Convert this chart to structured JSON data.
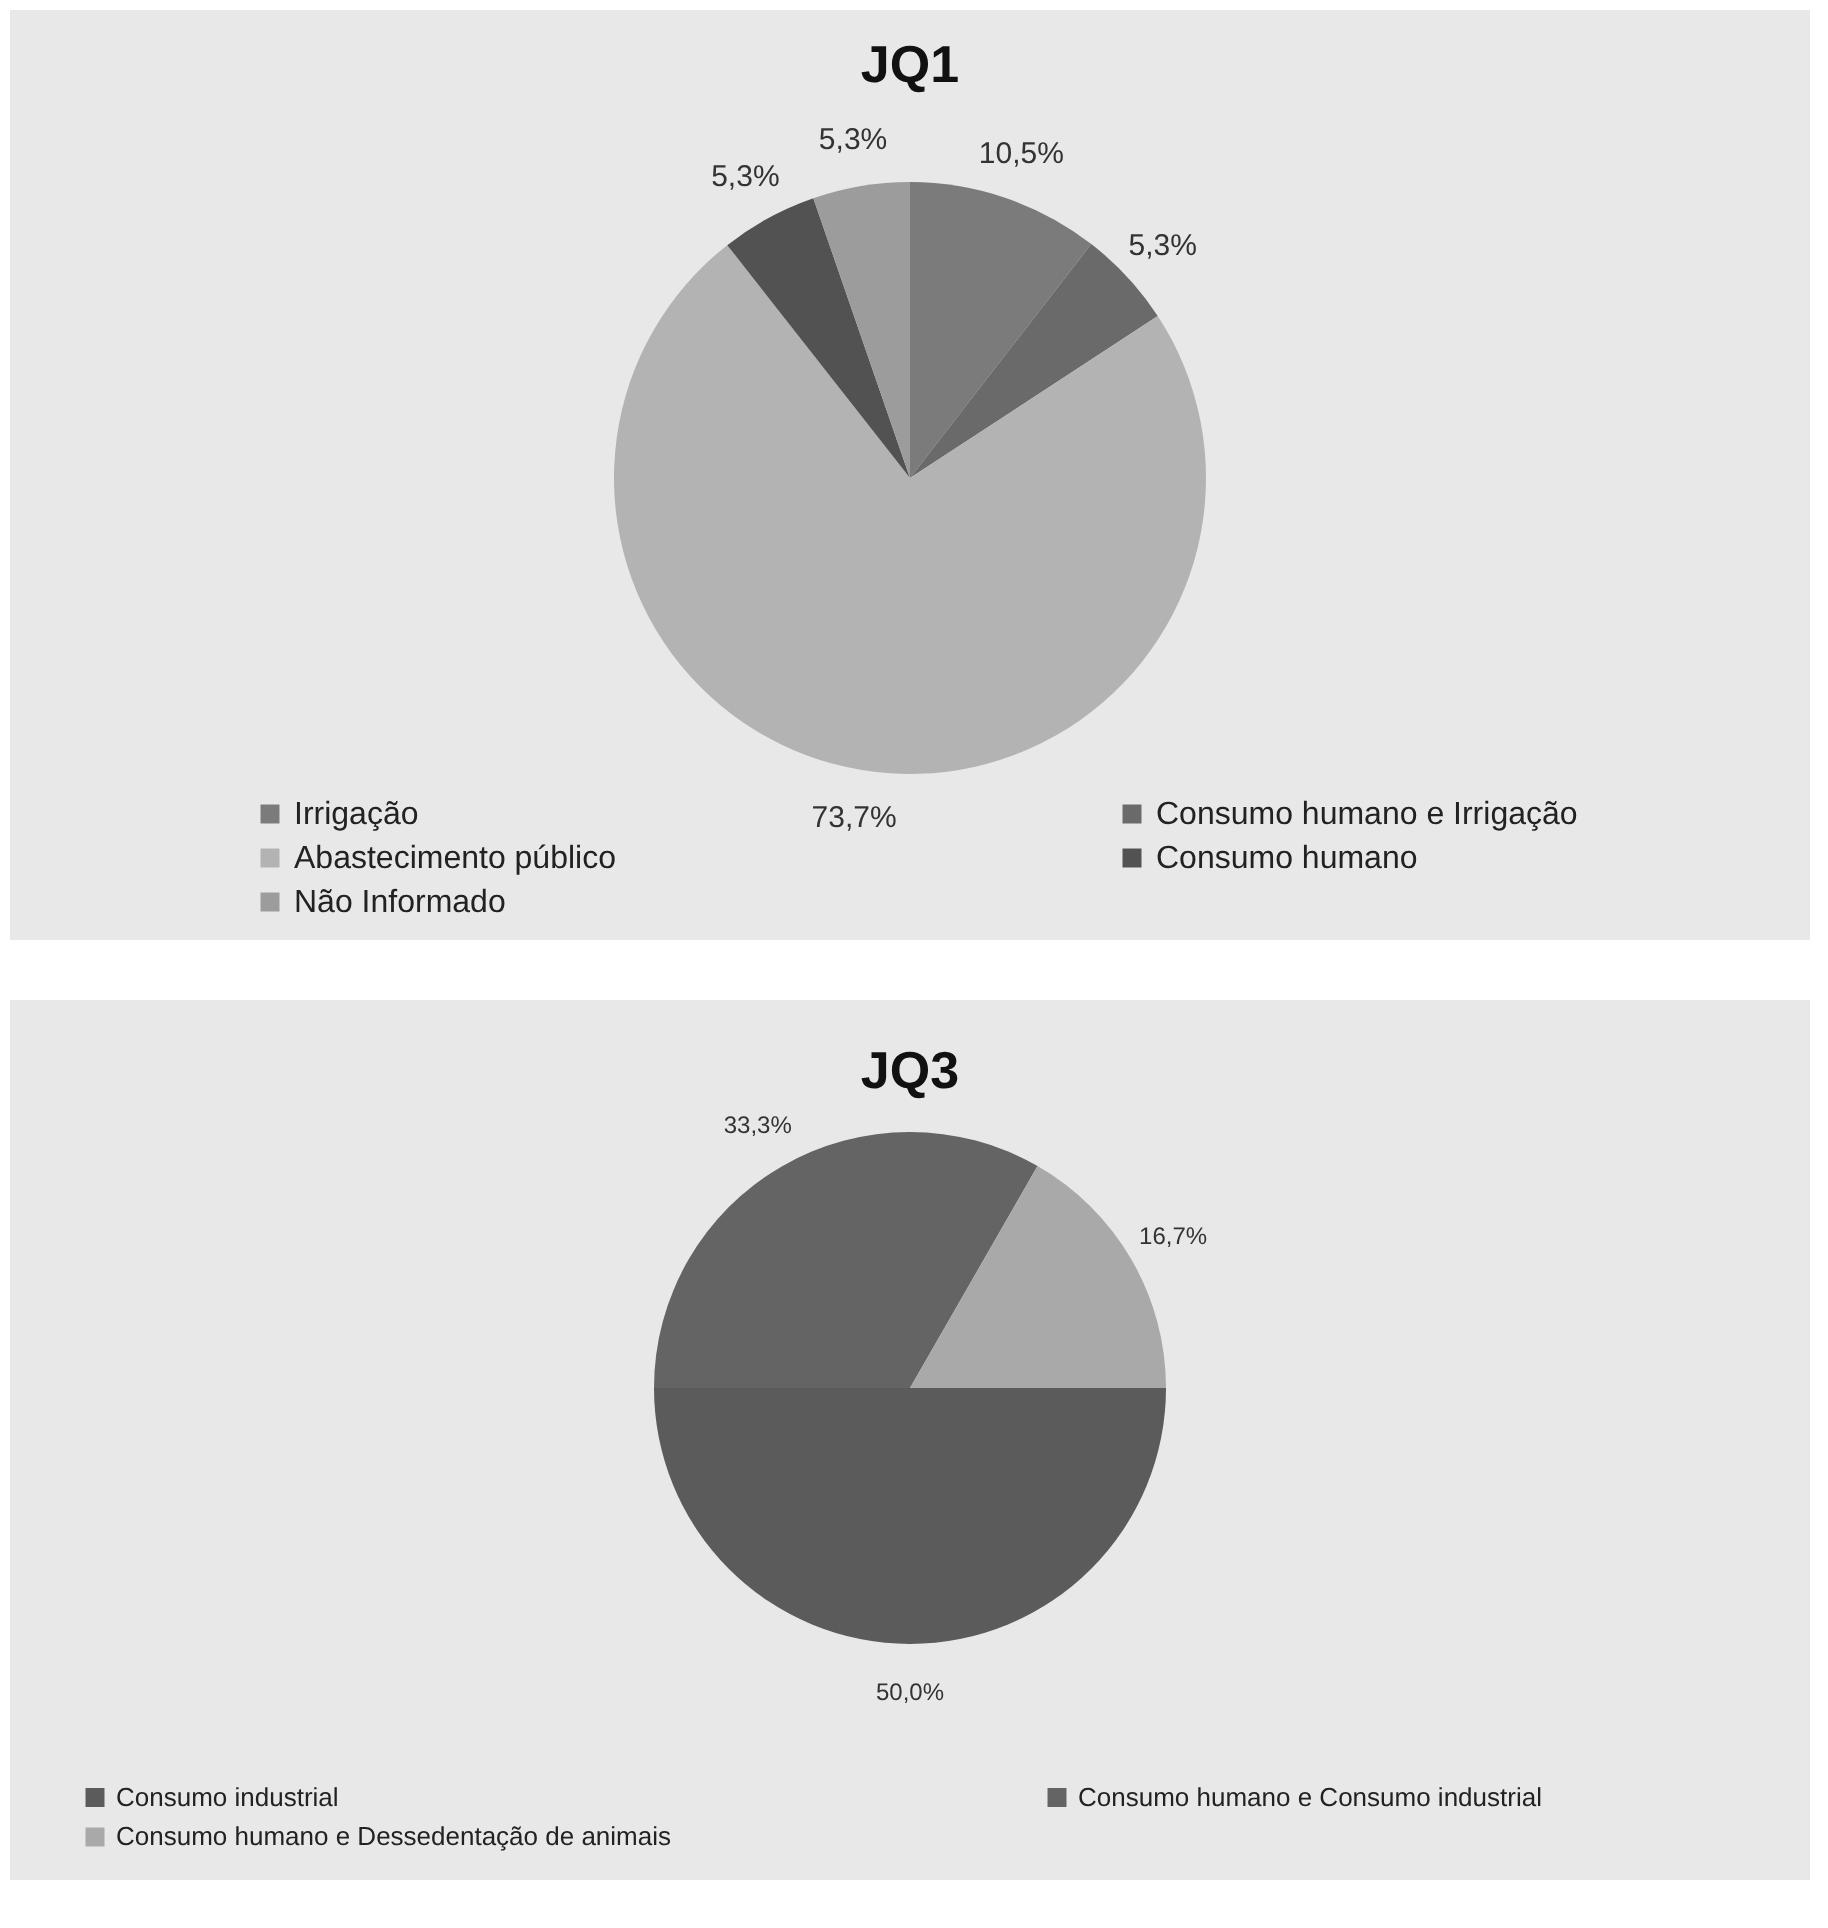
{
  "chart_data": [
    {
      "type": "pie",
      "title": "JQ1",
      "categories": [
        "Irrigação",
        "Consumo humano e Irrigação",
        "Abastecimento público",
        "Consumo humano",
        "Não Informado"
      ],
      "values": [
        10.5,
        5.3,
        73.7,
        5.3,
        5.3
      ],
      "colors": [
        "#7b7b7b",
        "#6a6a6a",
        "#b3b3b3",
        "#525252",
        "#9c9c9c"
      ],
      "value_labels": [
        "10,5%",
        "5,3%",
        "73,7%",
        "5,3%",
        "5,3%"
      ],
      "legend": "bottom"
    },
    {
      "type": "pie",
      "title": "JQ3",
      "categories": [
        "Consumo industrial",
        "Consumo humano e Consumo industrial",
        "Consumo humano e Dessedentação de animais"
      ],
      "values": [
        50.0,
        33.3,
        16.7
      ],
      "colors": [
        "#5b5b5b",
        "#646464",
        "#a9a9a9"
      ],
      "value_labels": [
        "50,0%",
        "33,3%",
        "16,7%"
      ],
      "legend": "bottom"
    }
  ]
}
